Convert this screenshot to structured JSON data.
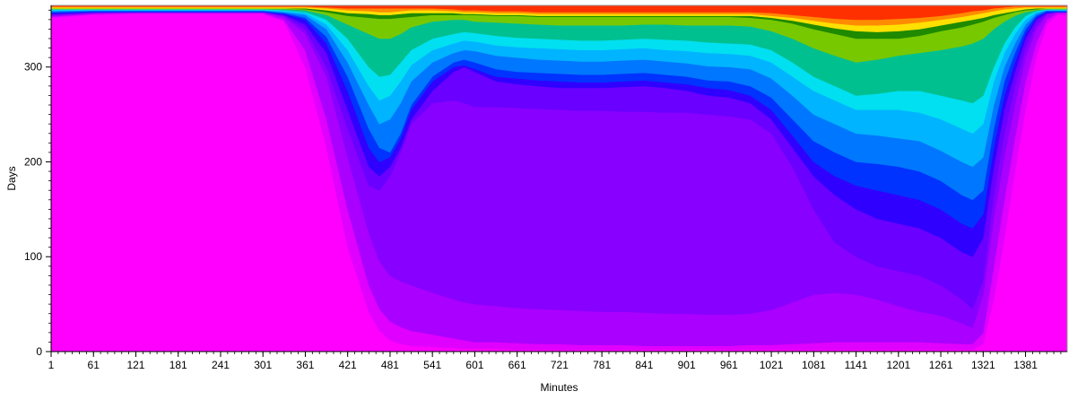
{
  "chart_data": {
    "type": "area",
    "xlabel": "Minutes",
    "ylabel": "Days",
    "xlim": [
      1,
      1440
    ],
    "ylim": [
      0,
      365
    ],
    "x_ticks": [
      1,
      61,
      121,
      181,
      241,
      301,
      361,
      421,
      481,
      541,
      601,
      661,
      721,
      781,
      841,
      901,
      961,
      1021,
      1081,
      1141,
      1201,
      1261,
      1321,
      1381
    ],
    "y_ticks": [
      0,
      100,
      200,
      300
    ],
    "grid": false,
    "legend": "none",
    "x": [
      1,
      61,
      121,
      181,
      241,
      301,
      331,
      361,
      391,
      421,
      451,
      466,
      481,
      496,
      511,
      541,
      571,
      586,
      601,
      631,
      661,
      691,
      721,
      751,
      781,
      811,
      841,
      871,
      901,
      931,
      961,
      991,
      1021,
      1051,
      1081,
      1111,
      1141,
      1171,
      1201,
      1231,
      1261,
      1291,
      1306,
      1321,
      1336,
      1351,
      1366,
      1381,
      1396,
      1411,
      1426,
      1440
    ],
    "series": [
      {
        "color": "#ff00ff",
        "values": [
          352,
          355,
          356,
          356,
          356,
          356,
          348,
          300,
          215,
          110,
          42,
          22,
          12,
          8,
          6,
          5,
          4,
          3,
          3,
          3,
          2,
          2,
          2,
          2,
          2,
          2,
          2,
          2,
          2,
          2,
          2,
          2,
          2,
          2,
          2,
          2,
          2,
          2,
          2,
          2,
          2,
          2,
          2,
          8,
          55,
          120,
          190,
          255,
          310,
          345,
          355,
          355
        ]
      },
      {
        "color": "#e000ff",
        "values": [
          353,
          356,
          357,
          357,
          357,
          357,
          350,
          318,
          245,
          150,
          70,
          45,
          32,
          26,
          22,
          18,
          14,
          12,
          10,
          10,
          9,
          8,
          8,
          7,
          7,
          7,
          6,
          6,
          6,
          6,
          6,
          7,
          7,
          8,
          9,
          10,
          10,
          10,
          10,
          10,
          9,
          8,
          8,
          20,
          90,
          160,
          225,
          285,
          325,
          350,
          357,
          357
        ]
      },
      {
        "color": "#aa00ff",
        "values": [
          354,
          357,
          358,
          358,
          358,
          358,
          353,
          335,
          290,
          205,
          125,
          95,
          80,
          74,
          70,
          62,
          55,
          52,
          50,
          48,
          46,
          45,
          44,
          43,
          42,
          42,
          41,
          40,
          40,
          39,
          39,
          40,
          44,
          52,
          60,
          62,
          60,
          55,
          48,
          42,
          38,
          30,
          25,
          60,
          140,
          205,
          260,
          310,
          340,
          355,
          358,
          358
        ]
      },
      {
        "color": "#8800ff",
        "values": [
          355,
          357,
          358,
          358,
          358,
          358,
          354,
          340,
          300,
          235,
          175,
          170,
          185,
          210,
          240,
          262,
          265,
          262,
          258,
          258,
          257,
          256,
          255,
          254,
          254,
          253,
          253,
          252,
          252,
          250,
          248,
          245,
          230,
          195,
          150,
          115,
          100,
          90,
          85,
          80,
          70,
          55,
          45,
          75,
          165,
          230,
          280,
          320,
          345,
          356,
          358,
          358
        ]
      },
      {
        "color": "#6a00ff",
        "values": [
          356,
          358,
          358,
          358,
          358,
          358,
          355,
          345,
          315,
          255,
          195,
          185,
          195,
          215,
          245,
          275,
          295,
          300,
          295,
          285,
          282,
          280,
          278,
          278,
          278,
          279,
          280,
          278,
          275,
          270,
          268,
          262,
          245,
          215,
          185,
          165,
          150,
          140,
          135,
          130,
          120,
          105,
          100,
          120,
          195,
          255,
          295,
          330,
          350,
          357,
          358,
          358
        ]
      },
      {
        "color": "#3000ff",
        "values": [
          357,
          358,
          358,
          358,
          358,
          358,
          356,
          350,
          325,
          275,
          215,
          200,
          205,
          225,
          255,
          285,
          300,
          302,
          298,
          290,
          288,
          286,
          285,
          284,
          284,
          285,
          286,
          284,
          282,
          278,
          276,
          270,
          255,
          228,
          200,
          185,
          175,
          170,
          165,
          160,
          150,
          135,
          130,
          145,
          215,
          270,
          305,
          335,
          352,
          358,
          358,
          358
        ]
      },
      {
        "color": "#0033ff",
        "values": [
          358,
          359,
          359,
          359,
          359,
          359,
          357,
          352,
          332,
          290,
          235,
          215,
          210,
          230,
          260,
          290,
          305,
          308,
          305,
          298,
          295,
          294,
          293,
          292,
          292,
          293,
          294,
          292,
          290,
          286,
          285,
          280,
          268,
          245,
          222,
          210,
          200,
          198,
          195,
          190,
          180,
          165,
          160,
          170,
          235,
          285,
          315,
          340,
          354,
          359,
          359,
          359
        ]
      },
      {
        "color": "#0077ff",
        "values": [
          359,
          360,
          360,
          360,
          360,
          360,
          358,
          355,
          340,
          305,
          260,
          240,
          245,
          262,
          285,
          305,
          315,
          318,
          317,
          312,
          310,
          308,
          307,
          306,
          306,
          307,
          308,
          306,
          304,
          301,
          300,
          298,
          288,
          270,
          250,
          240,
          230,
          228,
          225,
          222,
          212,
          200,
          195,
          205,
          260,
          300,
          325,
          345,
          356,
          360,
          360,
          360
        ]
      },
      {
        "color": "#00b4ff",
        "values": [
          360,
          360,
          360,
          360,
          360,
          360,
          359,
          357,
          345,
          318,
          280,
          265,
          270,
          285,
          302,
          318,
          325,
          328,
          327,
          323,
          321,
          320,
          319,
          318,
          318,
          319,
          320,
          318,
          317,
          315,
          314,
          312,
          305,
          290,
          275,
          265,
          255,
          255,
          255,
          252,
          245,
          235,
          230,
          240,
          285,
          315,
          335,
          350,
          358,
          360,
          360,
          360
        ]
      },
      {
        "color": "#00e0f0",
        "values": [
          361,
          361,
          361,
          361,
          361,
          361,
          360,
          358,
          350,
          330,
          300,
          290,
          292,
          305,
          318,
          330,
          335,
          337,
          336,
          333,
          331,
          330,
          329,
          328,
          328,
          329,
          330,
          329,
          328,
          326,
          325,
          324,
          318,
          305,
          290,
          280,
          270,
          272,
          275,
          275,
          270,
          265,
          262,
          270,
          300,
          325,
          342,
          354,
          359,
          361,
          361,
          361
        ]
      },
      {
        "color": "#00c090",
        "values": [
          361,
          361,
          361,
          361,
          361,
          361,
          361,
          360,
          355,
          345,
          335,
          330,
          330,
          335,
          342,
          348,
          350,
          350,
          348,
          347,
          346,
          345,
          344,
          344,
          344,
          344,
          345,
          345,
          344,
          344,
          344,
          343,
          338,
          330,
          320,
          312,
          305,
          308,
          312,
          315,
          318,
          322,
          325,
          330,
          340,
          348,
          354,
          358,
          360,
          361,
          361,
          361
        ]
      },
      {
        "color": "#78c800",
        "values": [
          362,
          362,
          362,
          362,
          362,
          362,
          362,
          361,
          358,
          354,
          352,
          351,
          351,
          352,
          353,
          355,
          355,
          355,
          355,
          354,
          354,
          353,
          353,
          353,
          353,
          353,
          353,
          353,
          353,
          353,
          353,
          352,
          350,
          346,
          340,
          335,
          330,
          330,
          330,
          333,
          338,
          342,
          345,
          348,
          352,
          355,
          358,
          360,
          361,
          362,
          362,
          362
        ]
      },
      {
        "color": "#1f8a00",
        "values": [
          362,
          362,
          362,
          362,
          362,
          362,
          362,
          362,
          360,
          357,
          356,
          355,
          355,
          356,
          357,
          357,
          357,
          356,
          356,
          355,
          355,
          354,
          354,
          354,
          354,
          354,
          354,
          354,
          354,
          354,
          354,
          354,
          352,
          349,
          345,
          341,
          338,
          337,
          338,
          340,
          344,
          348,
          350,
          352,
          355,
          357,
          359,
          361,
          362,
          362,
          362,
          362
        ]
      },
      {
        "color": "#ffe000",
        "values": [
          363,
          363,
          363,
          363,
          363,
          363,
          363,
          363,
          362,
          360,
          359,
          358,
          358,
          359,
          360,
          360,
          359,
          358,
          358,
          357,
          357,
          356,
          356,
          356,
          356,
          356,
          356,
          356,
          356,
          356,
          356,
          356,
          354,
          352,
          349,
          346,
          344,
          344,
          345,
          347,
          350,
          353,
          355,
          357,
          359,
          361,
          362,
          363,
          363,
          363,
          363,
          363
        ]
      },
      {
        "color": "#ff8c00",
        "values": [
          364,
          364,
          364,
          364,
          364,
          364,
          364,
          364,
          363,
          362,
          362,
          362,
          362,
          362,
          362,
          362,
          361,
          360,
          360,
          359,
          359,
          358,
          358,
          358,
          358,
          358,
          358,
          358,
          358,
          358,
          358,
          358,
          357,
          355,
          353,
          351,
          350,
          350,
          351,
          352,
          354,
          357,
          359,
          360,
          362,
          363,
          364,
          364,
          364,
          364,
          364,
          364
        ]
      },
      {
        "color": "#ff3000",
        "values": [
          365,
          365,
          365,
          365,
          365,
          365,
          365,
          365,
          365,
          365,
          365,
          365,
          365,
          365,
          365,
          365,
          365,
          365,
          365,
          365,
          365,
          365,
          365,
          365,
          365,
          365,
          365,
          365,
          365,
          365,
          365,
          365,
          365,
          365,
          365,
          365,
          365,
          365,
          365,
          365,
          365,
          365,
          365,
          365,
          365,
          365,
          365,
          365,
          365,
          365,
          365,
          365
        ]
      }
    ]
  }
}
